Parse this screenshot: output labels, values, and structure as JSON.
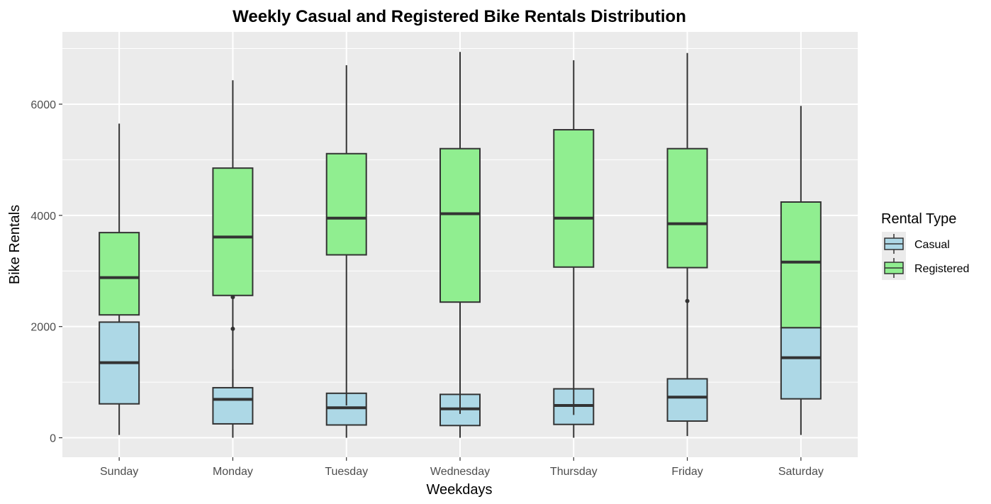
{
  "chart_data": {
    "type": "box",
    "title": "Weekly Casual and Registered Bike Rentals Distribution",
    "xlabel": "Weekdays",
    "ylabel": "Bike Rentals",
    "ylim": [
      -350,
      7300
    ],
    "yticks": [
      0,
      2000,
      4000,
      6000
    ],
    "grid": true,
    "legend": {
      "title": "Rental Type",
      "position": "right",
      "entries": [
        "Casual",
        "Registered"
      ]
    },
    "colors": {
      "Casual": "#add8e6",
      "Registered": "#90ee90",
      "panel_bg": "#ebebeb",
      "grid": "#ffffff",
      "stroke": "#333333"
    },
    "categories": [
      "Sunday",
      "Monday",
      "Tuesday",
      "Wednesday",
      "Thursday",
      "Friday",
      "Saturday"
    ],
    "series": [
      {
        "name": "Casual",
        "boxes": [
          {
            "min": 50,
            "q1": 610,
            "median": 1350,
            "q3": 2080,
            "max": 2080,
            "outliers": []
          },
          {
            "min": 0,
            "q1": 250,
            "median": 690,
            "q3": 900,
            "max": 1230,
            "outliers": [
              1960
            ]
          },
          {
            "min": 0,
            "q1": 230,
            "median": 540,
            "q3": 800,
            "max": 800,
            "outliers": []
          },
          {
            "min": 0,
            "q1": 220,
            "median": 520,
            "q3": 780,
            "max": 780,
            "outliers": []
          },
          {
            "min": 0,
            "q1": 240,
            "median": 580,
            "q3": 880,
            "max": 880,
            "outliers": []
          },
          {
            "min": 30,
            "q1": 300,
            "median": 730,
            "q3": 1060,
            "max": 1060,
            "outliers": [
              2460
            ]
          },
          {
            "min": 50,
            "q1": 700,
            "median": 1440,
            "q3": 1980,
            "max": 1980,
            "outliers": []
          }
        ]
      },
      {
        "name": "Registered",
        "boxes": [
          {
            "min": 2080,
            "q1": 2210,
            "median": 2880,
            "q3": 3690,
            "max": 5650,
            "outliers": []
          },
          {
            "min": 900,
            "q1": 2560,
            "median": 3610,
            "q3": 4850,
            "max": 6430,
            "outliers": [
              2530
            ]
          },
          {
            "min": 580,
            "q1": 3290,
            "median": 3950,
            "q3": 5110,
            "max": 6700,
            "outliers": []
          },
          {
            "min": 430,
            "q1": 2440,
            "median": 4030,
            "q3": 5200,
            "max": 6940,
            "outliers": []
          },
          {
            "min": 410,
            "q1": 3070,
            "median": 3950,
            "q3": 5540,
            "max": 6790,
            "outliers": []
          },
          {
            "min": 1060,
            "q1": 3060,
            "median": 3850,
            "q3": 5200,
            "max": 6920,
            "outliers": []
          },
          {
            "min": 1980,
            "q1": 1980,
            "median": 3160,
            "q3": 4240,
            "max": 5970,
            "outliers": []
          }
        ]
      }
    ]
  }
}
